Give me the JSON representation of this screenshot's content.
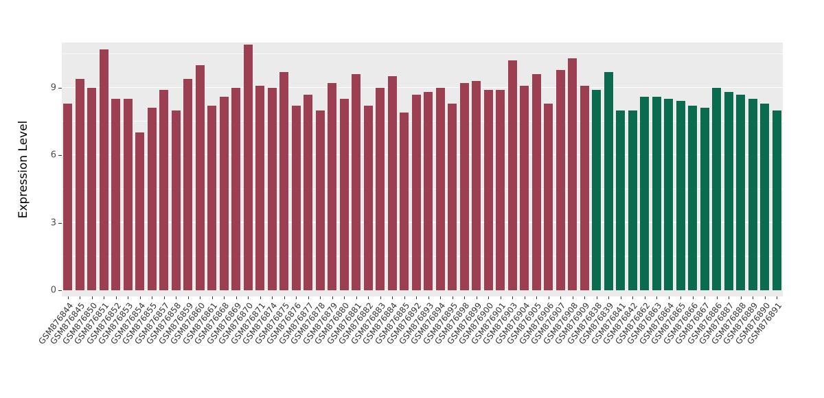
{
  "chart_data": {
    "type": "bar",
    "ylabel": "Expression Level",
    "yticks": [
      0,
      3,
      6,
      9
    ],
    "ylim": [
      0,
      11
    ],
    "grid": true,
    "legend_position": "none",
    "panel_background": "#EBEBEB",
    "gridline_color": "#FFFFFF",
    "categories": [
      "GSM876844",
      "GSM876845",
      "GSM876850",
      "GSM876851",
      "GSM876852",
      "GSM876853",
      "GSM876854",
      "GSM876855",
      "GSM876857",
      "GSM876858",
      "GSM876859",
      "GSM876860",
      "GSM876861",
      "GSM876868",
      "GSM876869",
      "GSM876870",
      "GSM876871",
      "GSM876874",
      "GSM876875",
      "GSM876876",
      "GSM876877",
      "GSM876878",
      "GSM876879",
      "GSM876880",
      "GSM876881",
      "GSM876882",
      "GSM876883",
      "GSM876884",
      "GSM876885",
      "GSM876892",
      "GSM876893",
      "GSM876894",
      "GSM876895",
      "GSM876898",
      "GSM876899",
      "GSM876900",
      "GSM876901",
      "GSM876903",
      "GSM876904",
      "GSM876905",
      "GSM876906",
      "GSM876907",
      "GSM876908",
      "GSM876909",
      "GSM876838",
      "GSM876839",
      "GSM876841",
      "GSM876842",
      "GSM876862",
      "GSM876863",
      "GSM876864",
      "GSM876865",
      "GSM876866",
      "GSM876867",
      "GSM876886",
      "GSM876887",
      "GSM876888",
      "GSM876889",
      "GSM876890",
      "GSM876891"
    ],
    "values": [
      8.3,
      9.4,
      9.0,
      10.7,
      8.5,
      8.5,
      7.0,
      8.1,
      8.9,
      8.0,
      9.4,
      10.0,
      8.2,
      8.6,
      9.0,
      10.9,
      9.1,
      9.0,
      9.7,
      8.2,
      8.7,
      8.0,
      9.2,
      8.5,
      9.6,
      8.2,
      9.0,
      9.5,
      7.9,
      8.7,
      8.8,
      9.0,
      8.3,
      9.2,
      9.3,
      8.9,
      8.9,
      10.2,
      9.1,
      9.6,
      8.3,
      9.8,
      10.3,
      9.1,
      8.9,
      9.7,
      8.0,
      8.0,
      8.6,
      8.6,
      8.5,
      8.4,
      8.2,
      8.1,
      9.0,
      8.8,
      8.7,
      8.5,
      8.3,
      8.0
    ],
    "groups": [
      {
        "color": "#9C3F52",
        "count": 44
      },
      {
        "color": "#0B6B4F",
        "count": 16
      }
    ]
  }
}
